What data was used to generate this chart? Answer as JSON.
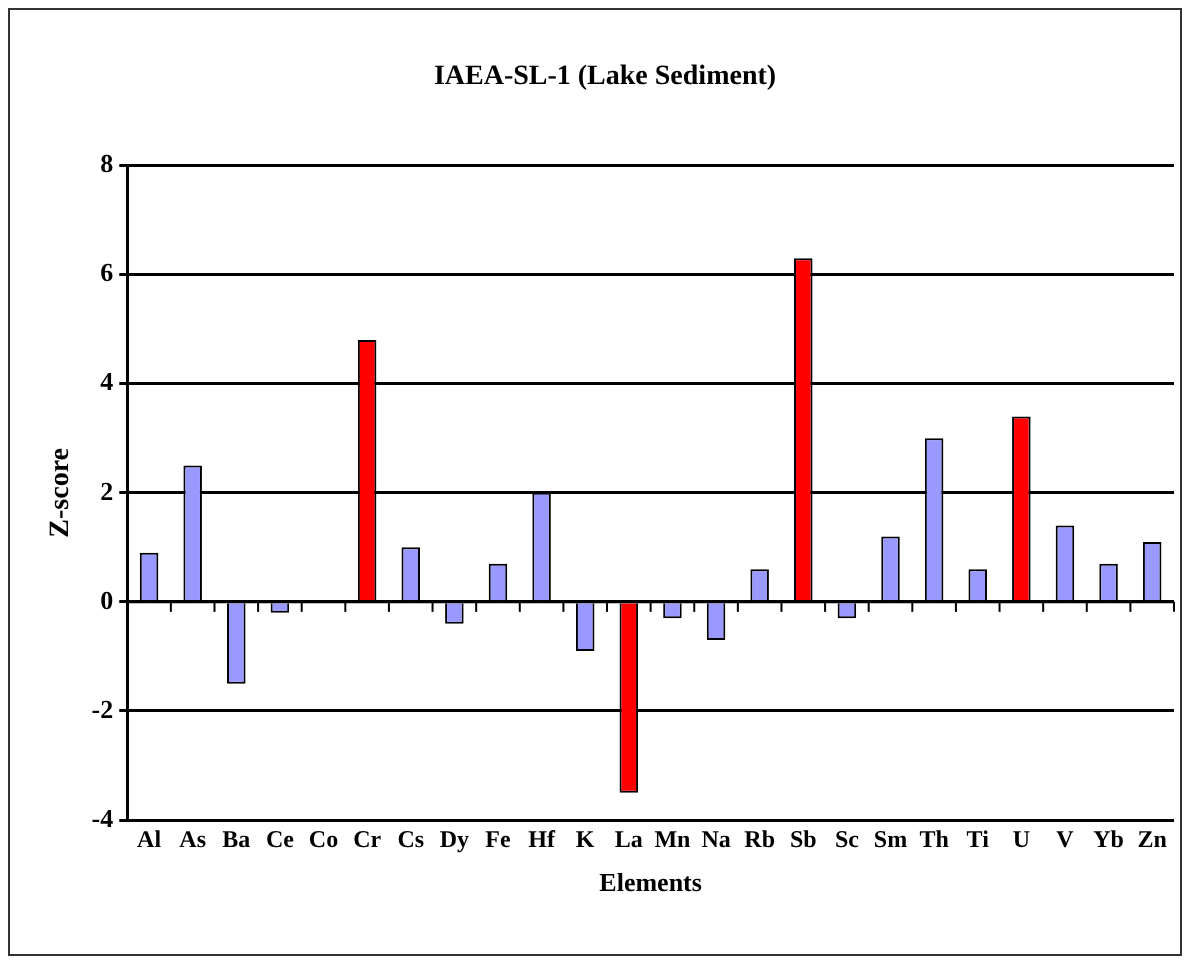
{
  "chart_data": {
    "type": "bar",
    "title": "IAEA-SL-1 (Lake Sediment)",
    "xlabel": "Elements",
    "ylabel": "Z-score",
    "categories": [
      "Al",
      "As",
      "Ba",
      "Ce",
      "Co",
      "Cr",
      "Cs",
      "Dy",
      "Fe",
      "Hf",
      "K",
      "La",
      "Mn",
      "Na",
      "Rb",
      "Sb",
      "Sc",
      "Sm",
      "Th",
      "Ti",
      "U",
      "V",
      "Yb",
      "Zn"
    ],
    "values": [
      0.9,
      2.5,
      -1.5,
      -0.2,
      0,
      4.8,
      1.0,
      -0.4,
      0.7,
      2.0,
      -0.9,
      -3.5,
      -0.3,
      -0.7,
      0.6,
      6.3,
      -0.3,
      1.2,
      3.0,
      0.6,
      3.4,
      1.4,
      0.7,
      1.1
    ],
    "colors": [
      "#9999ff",
      "#9999ff",
      "#9999ff",
      "#9999ff",
      "#9999ff",
      "#ff0000",
      "#9999ff",
      "#9999ff",
      "#9999ff",
      "#9999ff",
      "#9999ff",
      "#ff0000",
      "#9999ff",
      "#9999ff",
      "#9999ff",
      "#ff0000",
      "#9999ff",
      "#9999ff",
      "#9999ff",
      "#9999ff",
      "#ff0000",
      "#9999ff",
      "#9999ff",
      "#9999ff"
    ],
    "ylim": [
      -4,
      8
    ],
    "yticks": [
      -4,
      -2,
      0,
      2,
      4,
      6,
      8
    ],
    "grid": "y",
    "legend": false
  }
}
